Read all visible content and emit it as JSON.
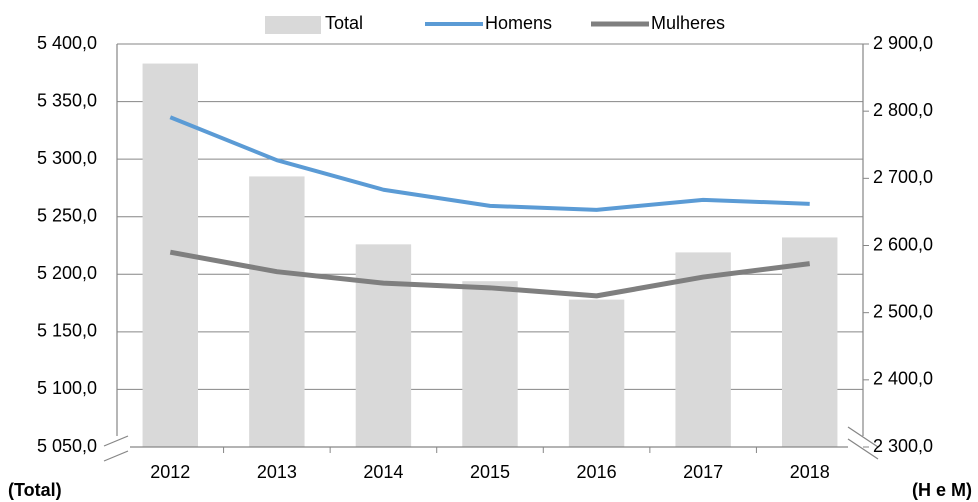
{
  "chart_data": {
    "type": "bar",
    "categories": [
      "2012",
      "2013",
      "2014",
      "2015",
      "2016",
      "2017",
      "2018"
    ],
    "series": [
      {
        "name": "Total",
        "type": "bar",
        "color": "#d9d9d9",
        "values": [
          5383,
          5285,
          5226,
          5194,
          5178,
          5219,
          5232
        ]
      },
      {
        "name": "Homens",
        "type": "line",
        "axis": "y2",
        "color": "#5b9bd5",
        "values": [
          2791,
          2727,
          2683,
          2659,
          2653,
          2668,
          2662
        ]
      },
      {
        "name": "Mulheres",
        "type": "line",
        "axis": "y2",
        "color": "#7f7f7f",
        "values": [
          2590,
          2561,
          2544,
          2537,
          2525,
          2553,
          2573
        ]
      }
    ],
    "y_label": "(Total)",
    "y2_label": "(H e M)",
    "ylim": [
      5050,
      5400
    ],
    "yticks": [
      {
        "value": 5050,
        "label": "5 050,0"
      },
      {
        "value": 5100,
        "label": "5 100,0"
      },
      {
        "value": 5150,
        "label": "5 150,0"
      },
      {
        "value": 5200,
        "label": "5 200,0"
      },
      {
        "value": 5250,
        "label": "5 250,0"
      },
      {
        "value": 5300,
        "label": "5 300,0"
      },
      {
        "value": 5350,
        "label": "5 350,0"
      },
      {
        "value": 5400,
        "label": "5 400,0"
      }
    ],
    "y2lim": [
      2300,
      2900
    ],
    "y2ticks": [
      {
        "value": 2300,
        "label": "2 300,0"
      },
      {
        "value": 2400,
        "label": "2 400,0"
      },
      {
        "value": 2500,
        "label": "2 500,0"
      },
      {
        "value": 2600,
        "label": "2 600,0"
      },
      {
        "value": 2700,
        "label": "2 700,0"
      },
      {
        "value": 2800,
        "label": "2 800,0"
      },
      {
        "value": 2900,
        "label": "2 900,0"
      }
    ],
    "grid": true,
    "legend": "top"
  }
}
